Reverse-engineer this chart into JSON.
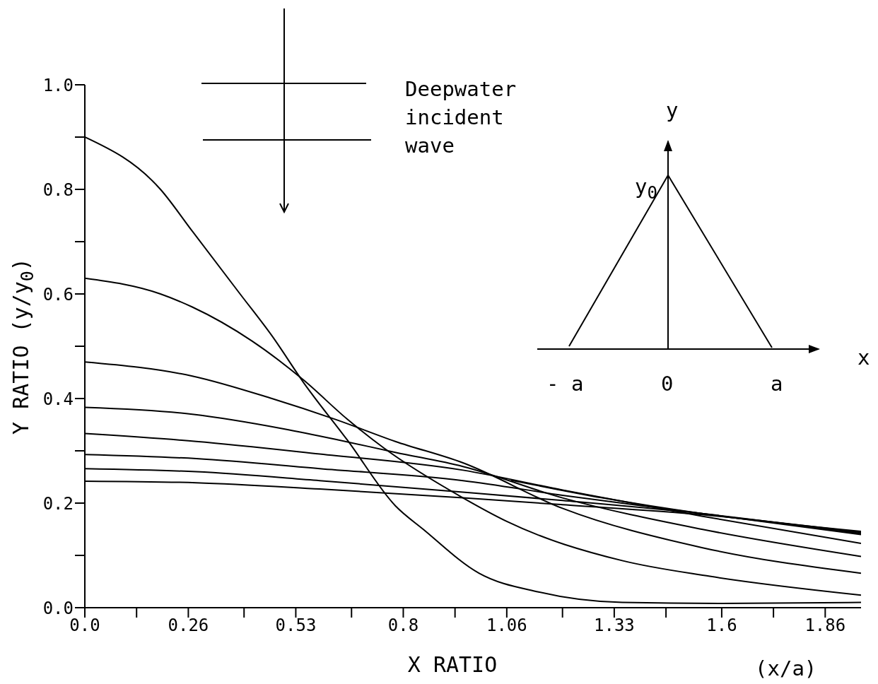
{
  "chart_data": {
    "type": "line",
    "xlabel": "X RATIO",
    "ylabel": "Y RATIO  (y/y$_{0}$)",
    "xlim": [
      0,
      1.95
    ],
    "ylim": [
      0,
      1.0
    ],
    "xticks": [
      {
        "value": 0,
        "label": "0.0"
      },
      {
        "value": 0.13,
        "label": null
      },
      0.26,
      {
        "value": 0.4,
        "label": null
      },
      0.53,
      {
        "value": 0.67,
        "label": null
      },
      0.8,
      {
        "value": 0.93,
        "label": null
      },
      1.06,
      {
        "value": 1.2,
        "label": null
      },
      1.33,
      {
        "value": 1.46,
        "label": null
      },
      1.6,
      {
        "value": 1.73,
        "label": null
      },
      1.86
    ],
    "yticks": [
      {
        "value": 0,
        "label": "0.0"
      },
      {
        "value": 0.1,
        "label": null
      },
      {
        "value": 0.2,
        "label": "0.2"
      },
      {
        "value": 0.3,
        "label": null
      },
      {
        "value": 0.4,
        "label": "0.4"
      },
      {
        "value": 0.5,
        "label": null
      },
      {
        "value": 0.6,
        "label": "0.6"
      },
      {
        "value": 0.7,
        "label": null
      },
      {
        "value": 0.8,
        "label": "0.8"
      },
      {
        "value": 0.9,
        "label": null
      },
      {
        "value": 1.0,
        "label": "1.0"
      }
    ],
    "marker": "none",
    "line_style": "solid",
    "series": [
      {
        "color": "#000000",
        "x": [
          0,
          0.19,
          0.27,
          0.39,
          0.47,
          0.55,
          0.66,
          0.78,
          0.85,
          0.99,
          1.14,
          1.35,
          1.6,
          1.95
        ],
        "values": [
          0.9,
          0.8,
          0.72,
          0.6,
          0.52,
          0.43,
          0.32,
          0.195,
          0.15,
          0.066,
          0.03,
          0.01,
          0.008,
          0.01
        ]
      },
      {
        "color": "#000000",
        "x": [
          0,
          0.19,
          0.27,
          0.42,
          0.55,
          0.66,
          0.75,
          0.95,
          1.06,
          1.35,
          1.57,
          1.95
        ],
        "values": [
          0.63,
          0.6,
          0.575,
          0.51,
          0.435,
          0.36,
          0.306,
          0.21,
          0.165,
          0.09,
          0.06,
          0.024
        ]
      },
      {
        "color": "#000000",
        "x": [
          0,
          0.27,
          0.47,
          0.63,
          0.78,
          0.95,
          1.2,
          1.55,
          1.95
        ],
        "values": [
          0.47,
          0.443,
          0.4,
          0.36,
          0.318,
          0.277,
          0.19,
          0.115,
          0.066
        ]
      },
      {
        "color": "#000000",
        "x": [
          0,
          0.27,
          0.5,
          0.63,
          0.78,
          0.95,
          1.2,
          1.55,
          1.95
        ],
        "values": [
          0.383,
          0.37,
          0.342,
          0.322,
          0.297,
          0.27,
          0.21,
          0.15,
          0.098
        ]
      },
      {
        "color": "#000000",
        "x": [
          0,
          0.28,
          0.59,
          0.95,
          1.2,
          1.55,
          1.95
        ],
        "values": [
          0.333,
          0.318,
          0.294,
          0.263,
          0.225,
          0.175,
          0.123
        ]
      },
      {
        "color": "#000000",
        "x": [
          0,
          0.28,
          0.59,
          0.95,
          1.2,
          1.55,
          1.95
        ],
        "values": [
          0.293,
          0.285,
          0.266,
          0.243,
          0.215,
          0.18,
          0.14
        ]
      },
      {
        "color": "#000000",
        "x": [
          0,
          0.28,
          0.59,
          0.95,
          1.2,
          1.55,
          1.95
        ],
        "values": [
          0.266,
          0.26,
          0.243,
          0.221,
          0.205,
          0.18,
          0.142
        ]
      },
      {
        "color": "#000000",
        "x": [
          0,
          0.28,
          0.59,
          0.95,
          1.2,
          1.55,
          1.95
        ],
        "values": [
          0.242,
          0.239,
          0.227,
          0.21,
          0.197,
          0.178,
          0.144
        ]
      },
      {
        "color": "#000000",
        "x": [
          1.07,
          1.3,
          1.55,
          1.95
        ],
        "values": [
          0.244,
          0.21,
          0.18,
          0.146
        ]
      }
    ],
    "annotations": [
      "Deepwater incident wave",
      "y",
      "y$_{0}$",
      "x",
      "- a",
      "0",
      "a",
      "(x/a)"
    ]
  }
}
